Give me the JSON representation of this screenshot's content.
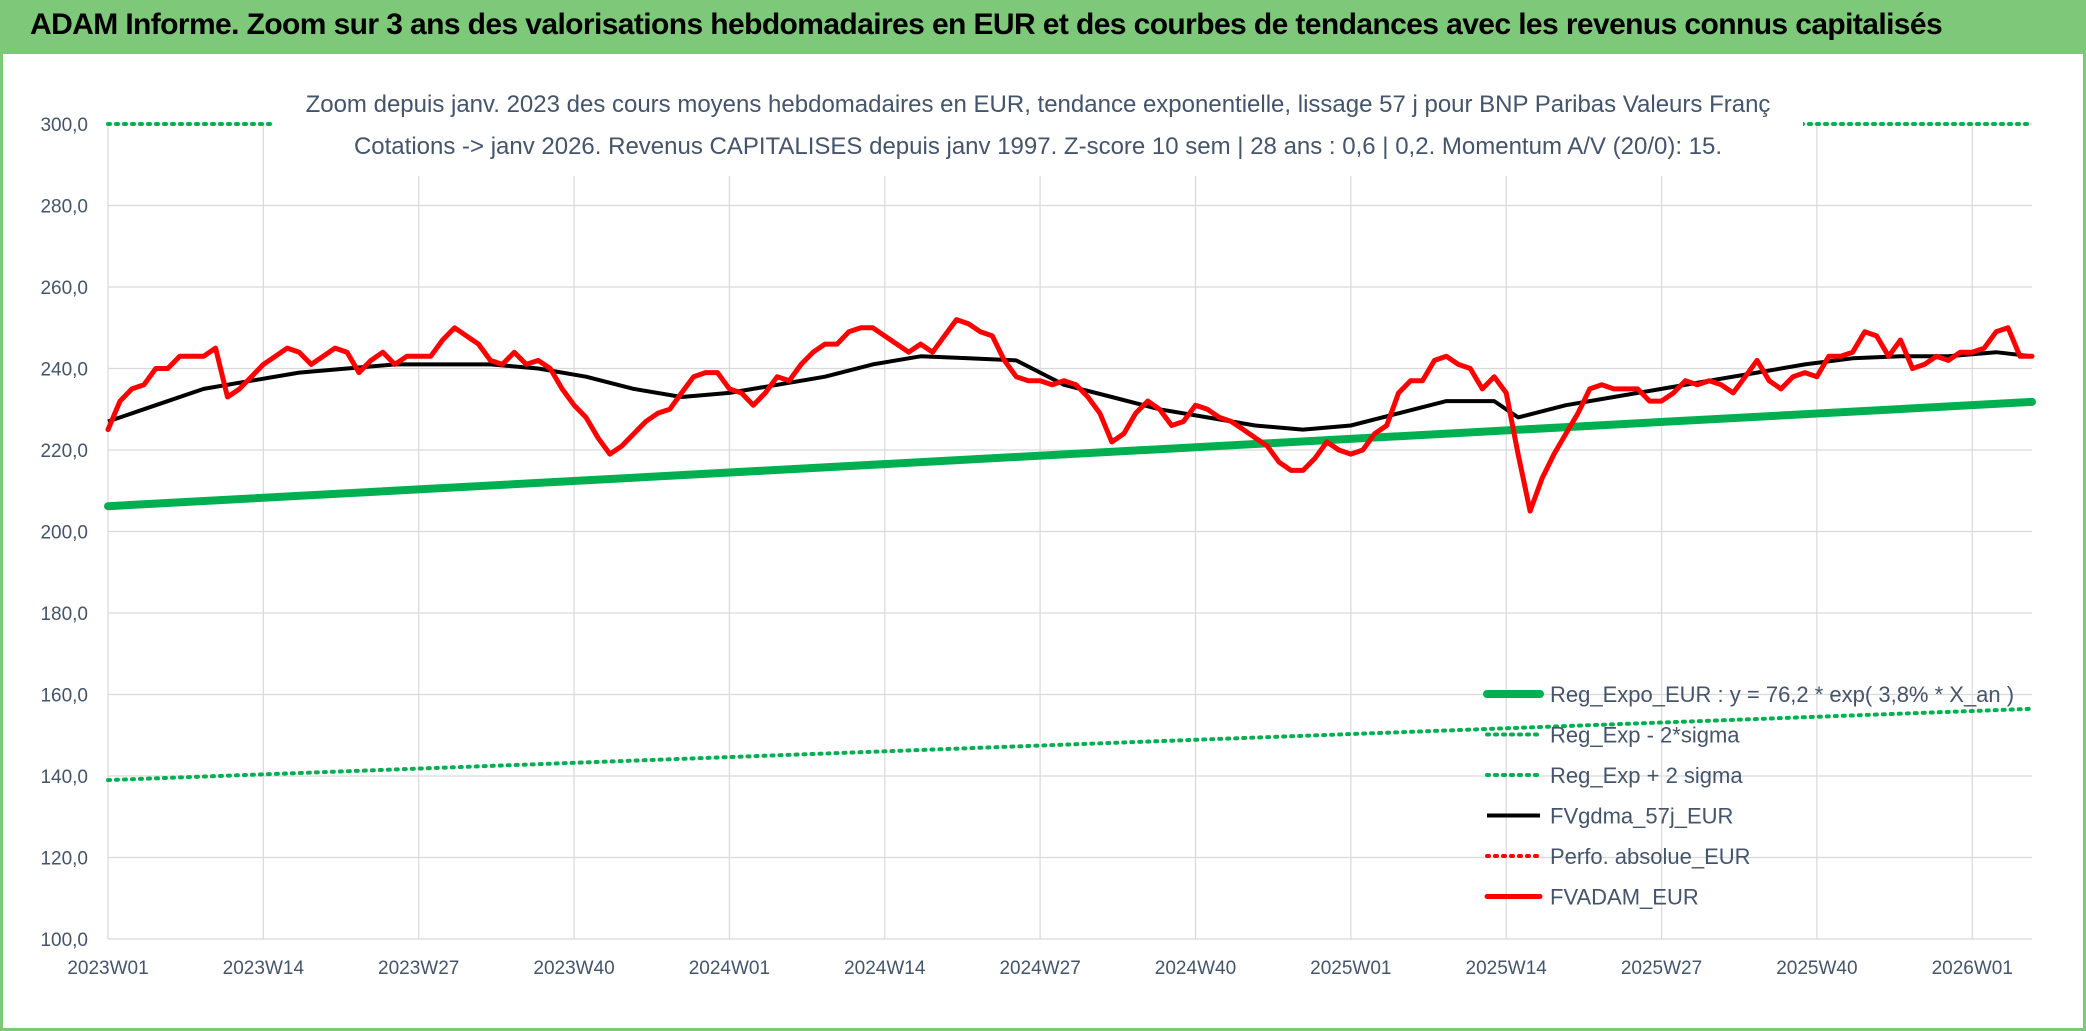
{
  "banner": {
    "title": "ADAM Informe. Zoom sur 3 ans des valorisations hebdomadaires en EUR et des courbes de tendances avec les revenus connus capitalisés"
  },
  "colors": {
    "banner_bg": "#7ec87a",
    "reg_expo": "#00b050",
    "sigma": "#00b050",
    "gdma": "#000000",
    "perfo": "#ff0000",
    "fvadam": "#ff0000",
    "title_text": "#44546a",
    "grid": "#d9d9d9"
  },
  "chart_data": {
    "type": "line",
    "title_line1": "Zoom depuis janv. 2023 des cours moyens hebdomadaires en EUR, tendance exponentielle, lissage 57 j pour BNP Paribas Valeurs Franç",
    "title_line2": "Cotations -> janv 2026. Revenus CAPITALISES depuis janv 1997. Z-score 10 sem | 28 ans : 0,6 | 0,2. Momentum A/V (20/0): 15.",
    "xlabel": "",
    "ylabel": "",
    "ylim": [
      100,
      300
    ],
    "yticks": [
      "100,0",
      "120,0",
      "140,0",
      "160,0",
      "180,0",
      "200,0",
      "220,0",
      "240,0",
      "260,0",
      "280,0",
      "300,0"
    ],
    "xticks": [
      "2023W01",
      "2023W14",
      "2023W27",
      "2023W40",
      "2024W01",
      "2024W14",
      "2024W27",
      "2024W40",
      "2025W01",
      "2025W14",
      "2025W27",
      "2025W40",
      "2026W01"
    ],
    "x_weeks": 162,
    "legend_position": "bottom-right",
    "series": [
      {
        "name": "Reg_Expo_EUR : y = 76,2 * exp( 3,8% *  X_an )",
        "style": "thick",
        "color": "#00b050",
        "points": [
          [
            0,
            206.2
          ],
          [
            161,
            231.8
          ]
        ]
      },
      {
        "name": "Reg_Exp - 2*sigma",
        "style": "dotted",
        "color": "#00b050",
        "points": [
          [
            0,
            139.0
          ],
          [
            161,
            156.5
          ]
        ]
      },
      {
        "name": "Reg_Exp + 2 sigma",
        "style": "dotted",
        "color": "#00b050",
        "points": [
          [
            0,
            300.0
          ],
          [
            14,
            300.0
          ]
        ],
        "points2": [
          [
            141,
            300.0
          ],
          [
            161,
            300.0
          ]
        ]
      },
      {
        "name": "FVgdma_57j_EUR",
        "style": "solid",
        "color": "#000000",
        "points": [
          [
            0,
            227
          ],
          [
            4,
            231
          ],
          [
            8,
            235
          ],
          [
            12,
            237
          ],
          [
            16,
            239
          ],
          [
            20,
            240
          ],
          [
            24,
            241
          ],
          [
            28,
            241
          ],
          [
            32,
            241
          ],
          [
            36,
            240
          ],
          [
            40,
            238
          ],
          [
            44,
            235
          ],
          [
            48,
            233
          ],
          [
            52,
            234
          ],
          [
            56,
            236
          ],
          [
            60,
            238
          ],
          [
            64,
            241
          ],
          [
            68,
            243
          ],
          [
            72,
            242.5
          ],
          [
            76,
            242
          ],
          [
            80,
            236
          ],
          [
            84,
            233
          ],
          [
            88,
            230
          ],
          [
            92,
            228
          ],
          [
            96,
            226
          ],
          [
            100,
            225
          ],
          [
            104,
            226
          ],
          [
            108,
            229
          ],
          [
            112,
            232
          ],
          [
            116,
            232
          ],
          [
            118,
            228
          ],
          [
            122,
            231
          ],
          [
            126,
            233
          ],
          [
            130,
            235
          ],
          [
            134,
            237
          ],
          [
            138,
            239
          ],
          [
            142,
            241
          ],
          [
            146,
            242.5
          ],
          [
            150,
            243
          ],
          [
            154,
            243
          ],
          [
            158,
            244
          ],
          [
            161,
            243
          ]
        ]
      },
      {
        "name": "Perfo. absolue_EUR",
        "style": "dotted",
        "color": "#ff0000",
        "points": []
      },
      {
        "name": "FVADAM_EUR",
        "style": "solid",
        "color": "#ff0000",
        "points": [
          [
            0,
            225
          ],
          [
            1,
            232
          ],
          [
            2,
            235
          ],
          [
            3,
            236
          ],
          [
            4,
            240
          ],
          [
            5,
            240
          ],
          [
            6,
            243
          ],
          [
            7,
            243
          ],
          [
            8,
            243
          ],
          [
            9,
            245
          ],
          [
            10,
            233
          ],
          [
            11,
            235
          ],
          [
            12,
            238
          ],
          [
            13,
            241
          ],
          [
            14,
            243
          ],
          [
            15,
            245
          ],
          [
            16,
            244
          ],
          [
            17,
            241
          ],
          [
            18,
            243
          ],
          [
            19,
            245
          ],
          [
            20,
            244
          ],
          [
            21,
            239
          ],
          [
            22,
            242
          ],
          [
            23,
            244
          ],
          [
            24,
            241
          ],
          [
            25,
            243
          ],
          [
            26,
            243
          ],
          [
            27,
            243
          ],
          [
            28,
            247
          ],
          [
            29,
            250
          ],
          [
            30,
            248
          ],
          [
            31,
            246
          ],
          [
            32,
            242
          ],
          [
            33,
            241
          ],
          [
            34,
            244
          ],
          [
            35,
            241
          ],
          [
            36,
            242
          ],
          [
            37,
            240
          ],
          [
            38,
            235
          ],
          [
            39,
            231
          ],
          [
            40,
            228
          ],
          [
            41,
            223
          ],
          [
            42,
            219
          ],
          [
            43,
            221
          ],
          [
            44,
            224
          ],
          [
            45,
            227
          ],
          [
            46,
            229
          ],
          [
            47,
            230
          ],
          [
            48,
            234
          ],
          [
            49,
            238
          ],
          [
            50,
            239
          ],
          [
            51,
            239
          ],
          [
            52,
            235
          ],
          [
            53,
            234
          ],
          [
            54,
            231
          ],
          [
            55,
            234
          ],
          [
            56,
            238
          ],
          [
            57,
            237
          ],
          [
            58,
            241
          ],
          [
            59,
            244
          ],
          [
            60,
            246
          ],
          [
            61,
            246
          ],
          [
            62,
            249
          ],
          [
            63,
            250
          ],
          [
            64,
            250
          ],
          [
            65,
            248
          ],
          [
            66,
            246
          ],
          [
            67,
            244
          ],
          [
            68,
            246
          ],
          [
            69,
            244
          ],
          [
            70,
            248
          ],
          [
            71,
            252
          ],
          [
            72,
            251
          ],
          [
            73,
            249
          ],
          [
            74,
            248
          ],
          [
            75,
            242
          ],
          [
            76,
            238
          ],
          [
            77,
            237
          ],
          [
            78,
            237
          ],
          [
            79,
            236
          ],
          [
            80,
            237
          ],
          [
            81,
            236
          ],
          [
            82,
            233
          ],
          [
            83,
            229
          ],
          [
            84,
            222
          ],
          [
            85,
            224
          ],
          [
            86,
            229
          ],
          [
            87,
            232
          ],
          [
            88,
            230
          ],
          [
            89,
            226
          ],
          [
            90,
            227
          ],
          [
            91,
            231
          ],
          [
            92,
            230
          ],
          [
            93,
            228
          ],
          [
            94,
            227
          ],
          [
            95,
            225
          ],
          [
            96,
            223
          ],
          [
            97,
            221
          ],
          [
            98,
            217
          ],
          [
            99,
            215
          ],
          [
            100,
            215
          ],
          [
            101,
            218
          ],
          [
            102,
            222
          ],
          [
            103,
            220
          ],
          [
            104,
            219
          ],
          [
            105,
            220
          ],
          [
            106,
            224
          ],
          [
            107,
            226
          ],
          [
            108,
            234
          ],
          [
            109,
            237
          ],
          [
            110,
            237
          ],
          [
            111,
            242
          ],
          [
            112,
            243
          ],
          [
            113,
            241
          ],
          [
            114,
            240
          ],
          [
            115,
            235
          ],
          [
            116,
            238
          ],
          [
            117,
            234
          ],
          [
            118,
            219
          ],
          [
            119,
            205
          ],
          [
            120,
            213
          ],
          [
            121,
            219
          ],
          [
            122,
            224
          ],
          [
            123,
            229
          ],
          [
            124,
            235
          ],
          [
            125,
            236
          ],
          [
            126,
            235
          ],
          [
            127,
            235
          ],
          [
            128,
            235
          ],
          [
            129,
            232
          ],
          [
            130,
            232
          ],
          [
            131,
            234
          ],
          [
            132,
            237
          ],
          [
            133,
            236
          ],
          [
            134,
            237
          ],
          [
            135,
            236
          ],
          [
            136,
            234
          ],
          [
            137,
            238
          ],
          [
            138,
            242
          ],
          [
            139,
            237
          ],
          [
            140,
            235
          ],
          [
            141,
            238
          ],
          [
            142,
            239
          ],
          [
            143,
            238
          ],
          [
            144,
            243
          ],
          [
            145,
            243
          ],
          [
            146,
            244
          ],
          [
            147,
            249
          ],
          [
            148,
            248
          ],
          [
            149,
            243
          ],
          [
            150,
            247
          ],
          [
            151,
            240
          ],
          [
            152,
            241
          ],
          [
            153,
            243
          ],
          [
            154,
            242
          ],
          [
            155,
            244
          ],
          [
            156,
            244
          ],
          [
            157,
            245
          ],
          [
            158,
            249
          ],
          [
            159,
            250
          ],
          [
            160,
            243
          ],
          [
            161,
            243
          ]
        ]
      }
    ]
  }
}
